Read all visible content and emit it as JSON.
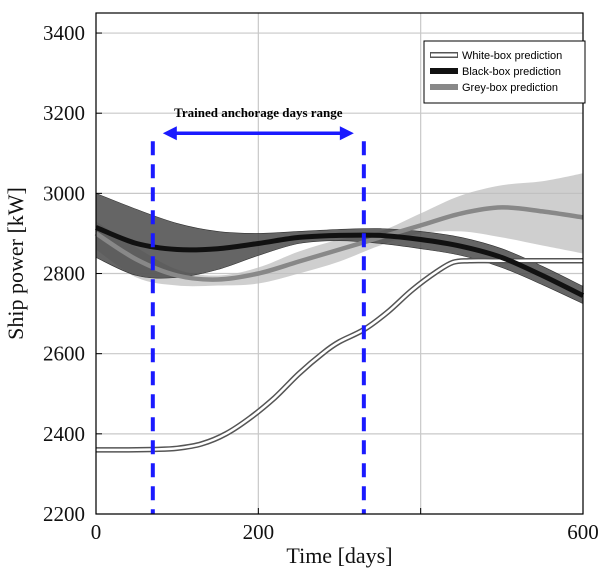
{
  "chart_data": {
    "type": "line",
    "xlabel": "Time [days]",
    "ylabel": "Ship power [kW]",
    "xlim": [
      0,
      600
    ],
    "ylim": [
      2200,
      3450
    ],
    "xticks": [
      0,
      200,
      600
    ],
    "xtick_labels": [
      "0",
      "200",
      "600"
    ],
    "xgrid": [
      0,
      200,
      400,
      600
    ],
    "yticks": [
      2200,
      2400,
      2600,
      2800,
      3000,
      3200,
      3400
    ],
    "ytick_labels": [
      "2200",
      "2400",
      "2600",
      "2800",
      "3000",
      "3200",
      "3400"
    ],
    "grid": true,
    "legend_position": "top-right",
    "series": [
      {
        "name": "White-box prediction",
        "color": "#ffffff",
        "outline": "#555555",
        "x": [
          0,
          40,
          70,
          100,
          130,
          160,
          190,
          220,
          250,
          280,
          300,
          330,
          360,
          390,
          420,
          440,
          460,
          500,
          600
        ],
        "y": [
          2360,
          2360,
          2361,
          2364,
          2375,
          2400,
          2440,
          2490,
          2550,
          2602,
          2630,
          2660,
          2705,
          2760,
          2805,
          2828,
          2832,
          2832,
          2832
        ],
        "lower": [
          2355,
          2355,
          2356,
          2359,
          2370,
          2395,
          2434,
          2484,
          2544,
          2596,
          2624,
          2654,
          2699,
          2753,
          2798,
          2822,
          2828,
          2828,
          2828
        ],
        "upper": [
          2365,
          2365,
          2366,
          2369,
          2380,
          2405,
          2446,
          2496,
          2556,
          2608,
          2636,
          2666,
          2711,
          2767,
          2812,
          2834,
          2838,
          2838,
          2838
        ]
      },
      {
        "name": "Black-box prediction",
        "color": "#111111",
        "x": [
          0,
          50,
          100,
          150,
          200,
          250,
          300,
          350,
          400,
          450,
          500,
          550,
          600
        ],
        "y": [
          2915,
          2875,
          2860,
          2862,
          2875,
          2890,
          2895,
          2895,
          2885,
          2868,
          2840,
          2795,
          2745
        ],
        "lower": [
          2840,
          2795,
          2790,
          2810,
          2845,
          2875,
          2882,
          2875,
          2862,
          2845,
          2815,
          2772,
          2725
        ],
        "upper": [
          3000,
          2960,
          2925,
          2905,
          2900,
          2905,
          2910,
          2912,
          2905,
          2890,
          2862,
          2818,
          2768
        ]
      },
      {
        "name": "Grey-box prediction",
        "color": "#888888",
        "x": [
          0,
          50,
          100,
          150,
          200,
          250,
          300,
          350,
          400,
          450,
          500,
          550,
          600
        ],
        "y": [
          2900,
          2835,
          2795,
          2785,
          2800,
          2830,
          2860,
          2890,
          2920,
          2950,
          2965,
          2955,
          2940
        ],
        "lower": [
          2860,
          2790,
          2770,
          2770,
          2775,
          2800,
          2830,
          2870,
          2900,
          2905,
          2890,
          2870,
          2850
        ],
        "upper": [
          2930,
          2865,
          2810,
          2795,
          2815,
          2855,
          2885,
          2905,
          2950,
          2995,
          3020,
          3030,
          3050
        ]
      }
    ],
    "annotations": {
      "range_label": "Trained anchorage days range",
      "range_x": [
        70,
        330
      ],
      "range_arrow_y": 3150,
      "range_line_top": 3130,
      "range_line_bottom": 2200,
      "color": "#1a1aff"
    }
  }
}
